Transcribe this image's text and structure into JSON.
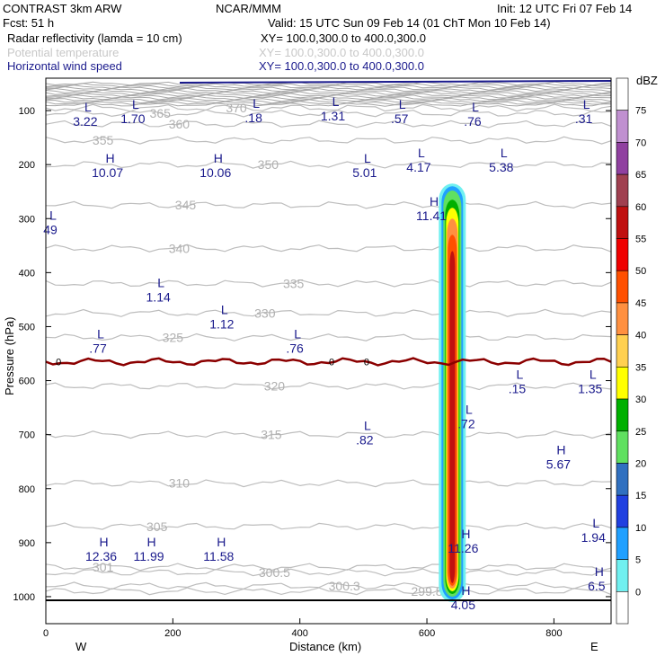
{
  "header": {
    "line1_left": "CONTRAST  3km ARW",
    "line1_mid": "NCAR/MMM",
    "line1_right": "Init: 12 UTC Fri 07 Feb 14",
    "line2_left": "Fcst:    51 h",
    "line2_right": "Valid: 15 UTC Sun 09 Feb 14 (01 ChT Mon 10 Feb 14)",
    "fields": [
      {
        "label": "Radar reflectivity (lamda = 10 cm)",
        "xy": "XY= 100.0,300.0 to 400.0,300.0",
        "color": "#000000"
      },
      {
        "label": "Potential temperature",
        "xy": "XY= 100.0,300.0 to 400.0,300.0",
        "color": "#c8c8c8"
      },
      {
        "label": "Horizontal wind speed",
        "xy": "XY= 100.0,300.0 to 400.0,300.0",
        "color": "#1a1a8c"
      }
    ]
  },
  "chart_data": {
    "type": "cross-section",
    "xlabel": "Distance (km)",
    "ylabel": "Pressure (hPa)",
    "xlim": [
      0,
      890
    ],
    "ylim": [
      40,
      1050
    ],
    "x_ticks": [
      0,
      200,
      400,
      600,
      800
    ],
    "y_ticks": [
      100,
      200,
      300,
      400,
      500,
      600,
      700,
      800,
      900,
      1000
    ],
    "left_end_label": "W",
    "right_end_label": "E",
    "colorbar": {
      "title": "dBZ",
      "levels": [
        "75",
        "70",
        "65",
        "60",
        "55",
        "50",
        "45",
        "40",
        "35",
        "30",
        "25",
        "20",
        "15",
        "10",
        "5",
        "0"
      ],
      "colors": [
        "#ffffff",
        "#c090d0",
        "#9040a0",
        "#a04050",
        "#c01010",
        "#f00000",
        "#ff5000",
        "#ff9040",
        "#ffd050",
        "#ffff00",
        "#00b000",
        "#60e060",
        "#3070c0",
        "#2040e0",
        "#20a0ff",
        "#70f0f0",
        "#ffffff"
      ]
    },
    "isentropes": [
      {
        "label": "370",
        "p": 95
      },
      {
        "label": "365",
        "p": 105
      },
      {
        "label": "360",
        "p": 125
      },
      {
        "label": "355",
        "p": 155
      },
      {
        "label": "350",
        "p": 200
      },
      {
        "label": "345",
        "p": 275
      },
      {
        "label": "340",
        "p": 355
      },
      {
        "label": "335",
        "p": 420
      },
      {
        "label": "330",
        "p": 475
      },
      {
        "label": "325",
        "p": 520
      },
      {
        "label": "320",
        "p": 610
      },
      {
        "label": "315",
        "p": 700
      },
      {
        "label": "310",
        "p": 790
      },
      {
        "label": "305",
        "p": 870
      },
      {
        "label": "301",
        "p": 945
      },
      {
        "label": "300.5",
        "p": 955
      },
      {
        "label": "300.3",
        "p": 980
      },
      {
        "label": "299.8",
        "p": 990
      }
    ],
    "zero_line_label": "0",
    "zero_line_p": 565,
    "wind_extrema": [
      {
        "type": "L",
        "value": "3.22",
        "x": 55,
        "p": 105
      },
      {
        "type": "L",
        "value": "1.70",
        "x": 130,
        "p": 100
      },
      {
        "type": "L",
        "value": ".18",
        "x": 320,
        "p": 98
      },
      {
        "type": "L",
        "value": "1.31",
        "x": 445,
        "p": 95
      },
      {
        "type": "L",
        "value": ".57",
        "x": 550,
        "p": 100
      },
      {
        "type": "L",
        "value": ".76",
        "x": 665,
        "p": 105
      },
      {
        "type": "L",
        "value": ".31",
        "x": 840,
        "p": 100
      },
      {
        "type": "H",
        "value": "10.07",
        "x": 90,
        "p": 200
      },
      {
        "type": "H",
        "value": "10.06",
        "x": 260,
        "p": 200
      },
      {
        "type": "L",
        "value": "5.01",
        "x": 495,
        "p": 200
      },
      {
        "type": "L",
        "value": "4.17",
        "x": 580,
        "p": 190
      },
      {
        "type": "L",
        "value": "5.38",
        "x": 710,
        "p": 190
      },
      {
        "type": "H",
        "value": "11.41",
        "x": 600,
        "p": 280
      },
      {
        "type": "L",
        "value": "49",
        "x": 0,
        "p": 305
      },
      {
        "type": "L",
        "value": "1.14",
        "x": 170,
        "p": 430
      },
      {
        "type": "L",
        "value": "1.12",
        "x": 270,
        "p": 480
      },
      {
        "type": "L",
        "value": ".77",
        "x": 75,
        "p": 525
      },
      {
        "type": "L",
        "value": ".76",
        "x": 385,
        "p": 525
      },
      {
        "type": "L",
        "value": ".15",
        "x": 735,
        "p": 600
      },
      {
        "type": "L",
        "value": "1.35",
        "x": 850,
        "p": 600
      },
      {
        "type": "L",
        "value": ".72",
        "x": 655,
        "p": 665
      },
      {
        "type": "L",
        "value": ".82",
        "x": 495,
        "p": 695
      },
      {
        "type": "H",
        "value": "5.67",
        "x": 800,
        "p": 740
      },
      {
        "type": "L",
        "value": "1.94",
        "x": 855,
        "p": 875
      },
      {
        "type": "H",
        "value": "12.36",
        "x": 80,
        "p": 910
      },
      {
        "type": "H",
        "value": "11.99",
        "x": 155,
        "p": 910
      },
      {
        "type": "H",
        "value": "11.58",
        "x": 265,
        "p": 910
      },
      {
        "type": "H",
        "value": "11.26",
        "x": 650,
        "p": 895
      },
      {
        "type": "H",
        "value": "6.5",
        "x": 860,
        "p": 965
      },
      {
        "type": "H",
        "value": "4.05",
        "x": 650,
        "p": 1000
      }
    ]
  }
}
